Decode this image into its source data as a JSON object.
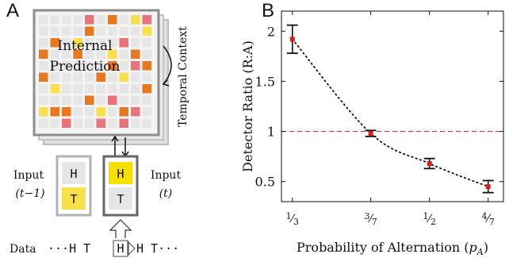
{
  "panel_a": {
    "letter": "A",
    "grid_title_line1": "Internal",
    "grid_title_line2": "Prediction",
    "temporal_label": "Temporal Context",
    "input_prev": {
      "label": "Input",
      "time": "(t−1)",
      "top_letter": "H",
      "bottom_letter": "T"
    },
    "input_curr": {
      "label": "Input",
      "time": "(t)",
      "top_letter": "H",
      "bottom_letter": "T"
    },
    "data_label": "Data",
    "data_seq_left": "···H T",
    "data_seq_box": "H",
    "data_seq_right": "H T···",
    "colors": {
      "orange": "#e8781e",
      "yellow": "#f7e04a",
      "pink": "#e8737a",
      "light_gray": "#e6e6e6",
      "frame": "#8c8c8c"
    }
  },
  "panel_b": {
    "letter": "B"
  },
  "chart_data": {
    "type": "scatter",
    "title": "",
    "xlabel": "Probability of Alternation (p_A)",
    "ylabel": "Detector Ratio (R:A)",
    "x": [
      0.3333,
      0.4286,
      0.5,
      0.5714
    ],
    "x_tick_labels": [
      "1/3",
      "3/7",
      "1/2",
      "4/7"
    ],
    "y": [
      1.92,
      0.98,
      0.68,
      0.45
    ],
    "error": [
      0.14,
      0.03,
      0.05,
      0.06
    ],
    "yticks": [
      0.5,
      1,
      1.5,
      2
    ],
    "ylim": [
      0.3,
      2.2
    ],
    "xlim": [
      0.32,
      0.59
    ],
    "reference_line": {
      "y": 1,
      "style": "dashed",
      "color": "#e0303a"
    },
    "fit_curve": {
      "style": "dotted",
      "color": "#111111"
    },
    "marker_color": "#d62020"
  }
}
